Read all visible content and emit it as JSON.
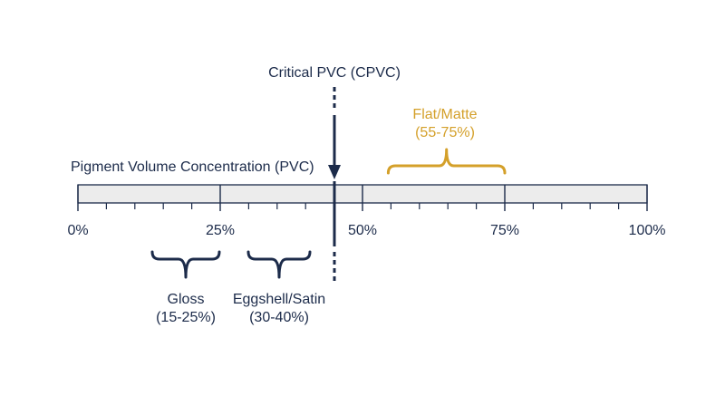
{
  "axis": {
    "title": "Pigment Volume Concentration (PVC)",
    "min": 0,
    "max": 100,
    "minor_step": 5,
    "major_step": 25,
    "tick_labels": [
      "0%",
      "25%",
      "50%",
      "75%",
      "100%"
    ]
  },
  "cpvc": {
    "label": "Critical PVC (CPVC)",
    "value": 45
  },
  "ranges": [
    {
      "id": "gloss",
      "name": "Gloss",
      "range_text": "(15-25%)",
      "from": 15,
      "to": 25,
      "position": "below"
    },
    {
      "id": "eggshell",
      "name": "Eggshell/Satin",
      "range_text": "(30-40%)",
      "from": 30,
      "to": 40,
      "position": "below"
    },
    {
      "id": "flat",
      "name": "Flat/Matte",
      "range_text": "(55-75%)",
      "from": 55,
      "to": 75,
      "position": "above"
    }
  ],
  "colors": {
    "navy": "#1c2b4a",
    "orange": "#d4a02a",
    "bar_fill": "#ececec"
  }
}
